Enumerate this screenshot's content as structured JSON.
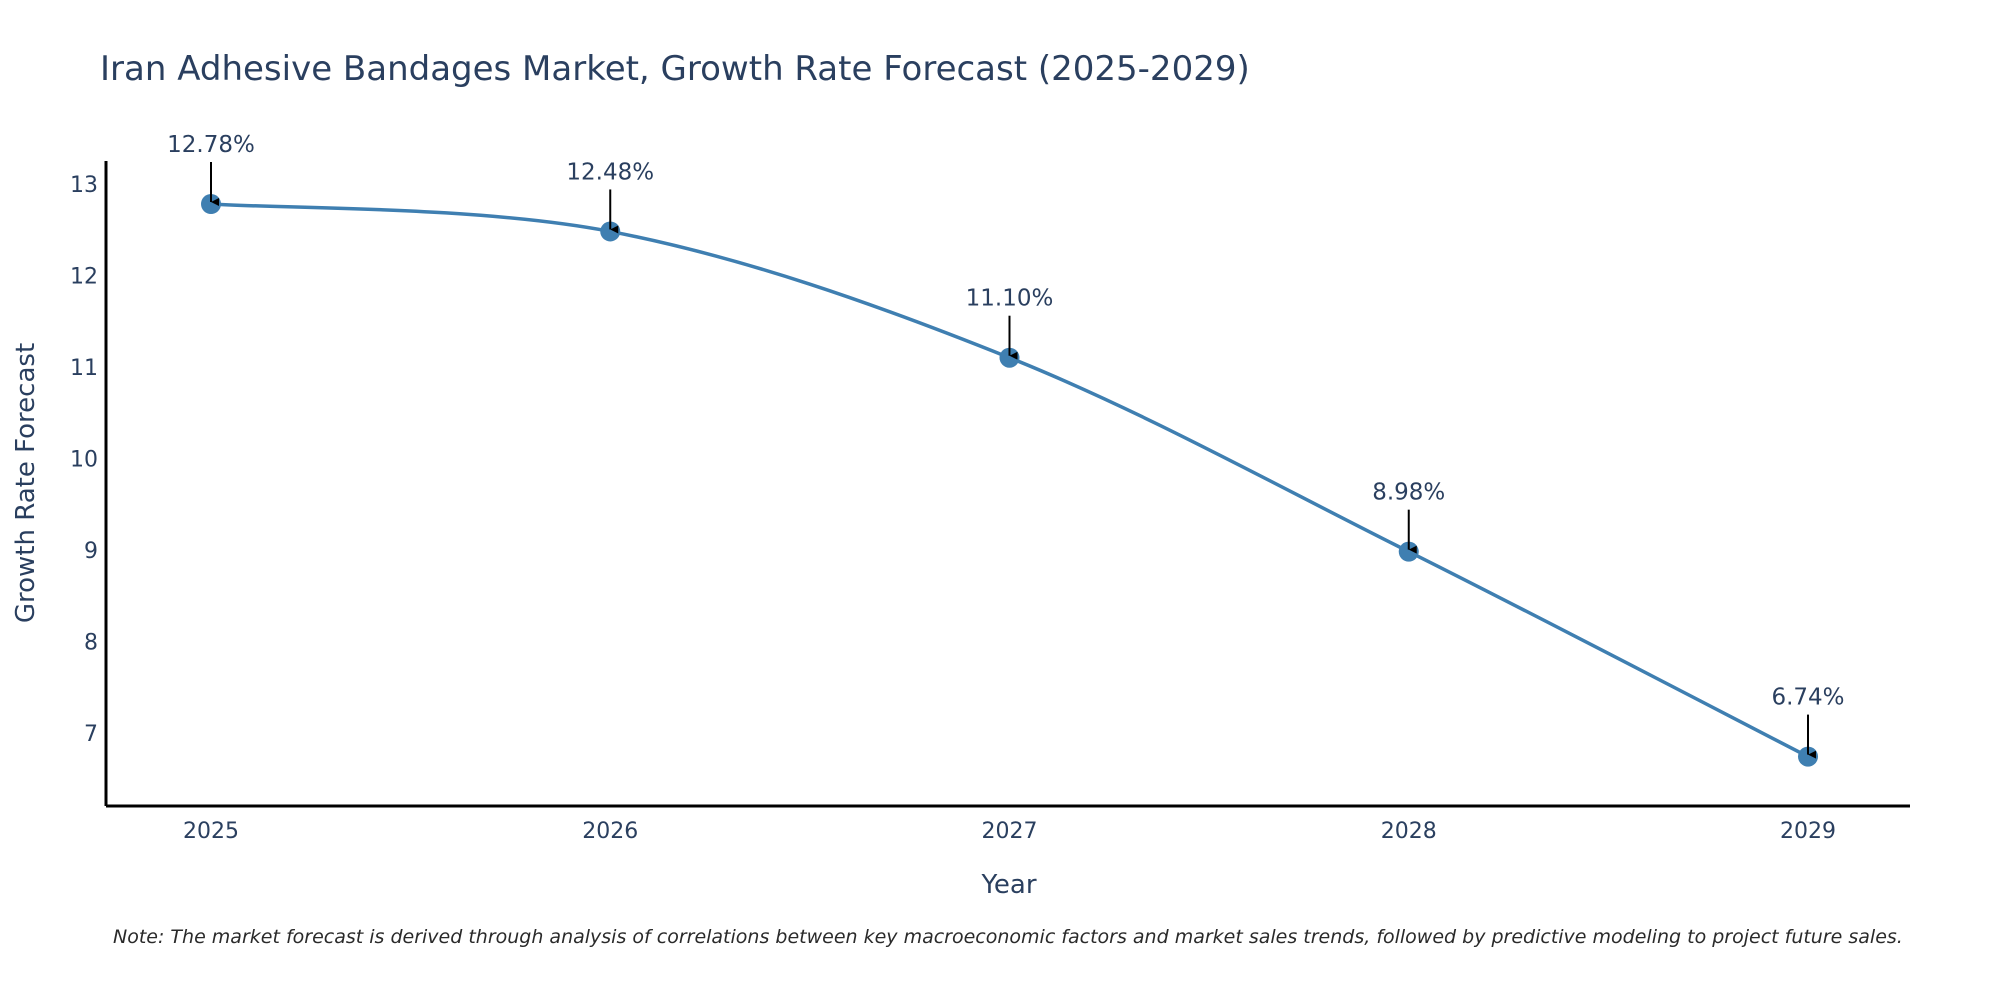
{
  "chart_data": {
    "type": "line",
    "title": "Iran Adhesive Bandages Market, Growth Rate Forecast (2025-2029)",
    "xlabel": "Year",
    "ylabel": "Growth Rate Forecast",
    "categories": [
      "2025",
      "2026",
      "2027",
      "2028",
      "2029"
    ],
    "series": [
      {
        "name": "Growth Rate Forecast",
        "values": [
          12.78,
          12.48,
          11.1,
          8.98,
          6.74
        ],
        "labels": [
          "12.78%",
          "12.48%",
          "11.10%",
          "8.98%",
          "6.74%"
        ],
        "color": "#3f7fb1"
      }
    ],
    "ylim": [
      6.2,
      13.25
    ],
    "yticks": [
      7,
      8,
      9,
      10,
      11,
      12,
      13
    ],
    "grid": false,
    "line_shape": "spline"
  },
  "note": "Note: The market forecast is derived through analysis of correlations between key macroeconomic factors and market sales trends, followed by predictive modeling to project future sales.",
  "colors": {
    "line": "#3f7fb1",
    "marker": "#3f7fb1",
    "text": "#2a3f5f",
    "axis": "#000000",
    "arrow": "#000000"
  }
}
